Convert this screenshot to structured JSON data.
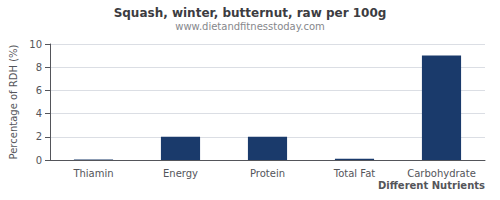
{
  "chart_data": {
    "type": "bar",
    "title": "Squash, winter, butternut, raw per 100g",
    "subtitle": "www.dietandfitnesstoday.com",
    "categories": [
      "Thiamin",
      "Energy",
      "Protein",
      "Total Fat",
      "Carbohydrate"
    ],
    "values": [
      0.05,
      2.0,
      2.0,
      0.1,
      9.0
    ],
    "color": "#1a3a6b",
    "xlabel": "Different Nutrients",
    "ylabel": "Percentage of RDH (%)",
    "ylim": [
      0,
      10
    ],
    "yticks": [
      0,
      2,
      4,
      6,
      8,
      10
    ],
    "grid": true
  }
}
